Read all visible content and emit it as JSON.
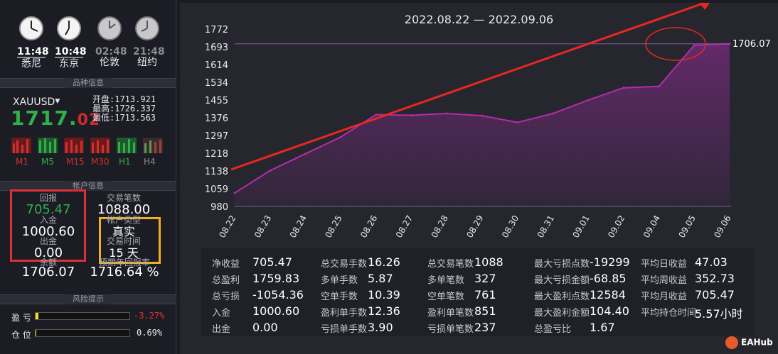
{
  "clocks": [
    {
      "time": "11:48",
      "city": "悉尼",
      "active": true
    },
    {
      "time": "10:48",
      "city": "东京",
      "active": true
    },
    {
      "time": "02:48",
      "city": "伦敦",
      "active": false
    },
    {
      "time": "21:48",
      "city": "纽约",
      "active": false
    }
  ],
  "symbol_section": {
    "title": "品种信息",
    "symbol": "XAUUSD",
    "price_main": "1717.",
    "price_tail": "02",
    "open_label": "开盘:",
    "open": "1713.921",
    "high_label": "最高:",
    "high": "1726.337",
    "low_label": "最低:",
    "low": "1713.563",
    "timeframes": [
      {
        "label": "M1",
        "color": "#d03030"
      },
      {
        "label": "M5",
        "color": "#2fb04a"
      },
      {
        "label": "M15",
        "color": "#d03030"
      },
      {
        "label": "M30",
        "color": "#d03030"
      },
      {
        "label": "H1",
        "color": "#2fb04a"
      },
      {
        "label": "H4",
        "color": "#8a8b93"
      }
    ]
  },
  "account": {
    "title": "帐户信息",
    "return_label": "回报",
    "return_value": "705.47",
    "deposit_label": "入金",
    "deposit_value": "1000.60",
    "withdraw_label": "出金",
    "withdraw_value": "0.00",
    "balance_label": "余额",
    "balance_value": "1706.07",
    "trades_label": "交易笔数",
    "trades_value": "1088.00",
    "acct_type_label": "帐户类型",
    "acct_type_value": "真实",
    "trade_time_label": "交易时间",
    "trade_time_value": "15 天",
    "annual_label": "预期年回报率",
    "annual_value": "1716.64 %"
  },
  "risk": {
    "title": "风险提示",
    "profit_label": "盈  亏",
    "profit_value": "-3.27%",
    "profit_level": 0.03,
    "position_label": "仓  位",
    "position_value": "0.69%",
    "position_level": 0.007
  },
  "chart_data": {
    "type": "area",
    "title": "2022.08.22 — 2022.09.06",
    "categories": [
      "08.22",
      "08.23",
      "08.24",
      "08.25",
      "08.26",
      "08.27",
      "08.28",
      "08.29",
      "08.30",
      "08.31",
      "09.01",
      "09.02",
      "09.04",
      "09.05",
      "09.06"
    ],
    "values": [
      1040,
      1140,
      1215,
      1290,
      1390,
      1387,
      1395,
      1385,
      1355,
      1395,
      1455,
      1510,
      1516,
      1700,
      1706.07
    ],
    "ylim": [
      980,
      1772
    ],
    "yticks": [
      "1772",
      "1693",
      "1614",
      "1534",
      "1455",
      "1376",
      "1297",
      "1218",
      "1138",
      "1059",
      "980"
    ],
    "last_label": "1706.07",
    "line_color": "#b02ea8",
    "fill_color": "#6a2a70",
    "trend_color": "#e8281f"
  },
  "stats": {
    "col1": [
      {
        "label": "净收益",
        "value": "705.47"
      },
      {
        "label": "总盈利",
        "value": "1759.83"
      },
      {
        "label": "总亏损",
        "value": "-1054.36"
      },
      {
        "label": "入金",
        "value": "1000.60"
      },
      {
        "label": "出金",
        "value": "0.00"
      }
    ],
    "col2": [
      {
        "label": "总交易手数",
        "value": "16.26"
      },
      {
        "label": "多单手数",
        "value": "5.87"
      },
      {
        "label": "空单手数",
        "value": "10.39"
      },
      {
        "label": "盈利单手数",
        "value": "12.36"
      },
      {
        "label": "亏损单手数",
        "value": "3.90"
      }
    ],
    "col3": [
      {
        "label": "总交易笔数",
        "value": "1088"
      },
      {
        "label": "多单笔数",
        "value": "327"
      },
      {
        "label": "空单笔数",
        "value": "761"
      },
      {
        "label": "盈利单笔数",
        "value": "851"
      },
      {
        "label": "亏损单笔数",
        "value": "237"
      }
    ],
    "col4": [
      {
        "label": "最大亏损点数",
        "value": "-19299"
      },
      {
        "label": "最大亏损金额",
        "value": "-68.85"
      },
      {
        "label": "最大盈利点数",
        "value": "12584"
      },
      {
        "label": "最大盈利金额",
        "value": "104.40"
      },
      {
        "label": "总盈亏比",
        "value": "1.67"
      }
    ],
    "col5": [
      {
        "label": "平均日收益",
        "value": "47.03"
      },
      {
        "label": "平均周收益",
        "value": "352.73"
      },
      {
        "label": "平均月收益",
        "value": "705.47"
      },
      {
        "label": "平均持仓时间",
        "value": "5.57小时"
      }
    ]
  },
  "watermark": "EAHub"
}
